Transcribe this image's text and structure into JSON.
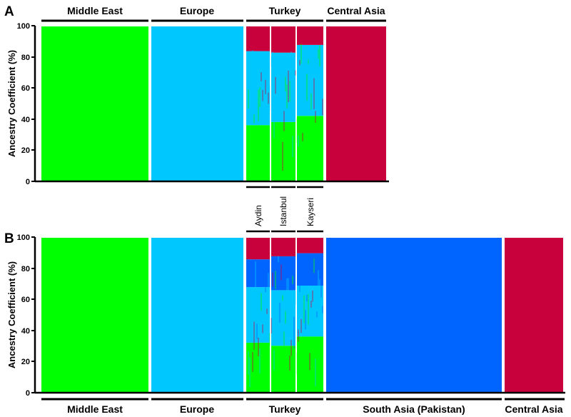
{
  "colors": {
    "middle_east": "#00ff00",
    "europe": "#00c8ff",
    "central_asia": "#c8003c",
    "south_asia": "#0064ff",
    "divider": "#ffffff",
    "axis": "#000000"
  },
  "chart_data": [
    {
      "panel": "A",
      "type": "bar",
      "stacked": true,
      "ylabel": "Ancestry Coefficient (%)",
      "ylim": [
        0,
        100
      ],
      "yticks": [
        "0",
        "20",
        "40",
        "60",
        "80",
        "100"
      ],
      "groups": [
        {
          "name": "Middle East",
          "composition": {
            "middle_east": 100,
            "europe": 0,
            "central_asia": 0
          }
        },
        {
          "name": "Europe",
          "composition": {
            "middle_east": 0,
            "europe": 100,
            "central_asia": 0
          }
        },
        {
          "name": "Turkey",
          "composition": {
            "middle_east": 38,
            "europe": 47,
            "central_asia": 15
          },
          "subgroups": [
            {
              "name": "Aydin",
              "middle_east": 36,
              "europe": 48,
              "central_asia": 16
            },
            {
              "name": "Istanbul",
              "middle_east": 38,
              "europe": 45,
              "central_asia": 17
            },
            {
              "name": "Kayseri",
              "middle_east": 42,
              "europe": 46,
              "central_asia": 12
            }
          ]
        },
        {
          "name": "Central Asia",
          "composition": {
            "middle_east": 0,
            "europe": 0,
            "central_asia": 100
          }
        }
      ]
    },
    {
      "panel": "B",
      "type": "bar",
      "stacked": true,
      "ylabel": "Ancestry Coefficient (%)",
      "ylim": [
        0,
        100
      ],
      "yticks": [
        "0",
        "20",
        "40",
        "60",
        "80",
        "100"
      ],
      "groups": [
        {
          "name": "Middle East",
          "composition": {
            "middle_east": 100,
            "europe": 0,
            "south_asia": 0,
            "central_asia": 0
          }
        },
        {
          "name": "Europe",
          "composition": {
            "middle_east": 0,
            "europe": 100,
            "south_asia": 0,
            "central_asia": 0
          }
        },
        {
          "name": "Turkey",
          "composition": {
            "middle_east": 33,
            "europe": 35,
            "south_asia": 20,
            "central_asia": 12
          },
          "subgroups": [
            {
              "name": "Aydin",
              "middle_east": 32,
              "europe": 36,
              "south_asia": 18,
              "central_asia": 14
            },
            {
              "name": "Istanbul",
              "middle_east": 30,
              "europe": 36,
              "south_asia": 22,
              "central_asia": 12
            },
            {
              "name": "Kayseri",
              "middle_east": 36,
              "europe": 33,
              "south_asia": 21,
              "central_asia": 10
            }
          ]
        },
        {
          "name": "South Asia (Pakistan)",
          "composition": {
            "middle_east": 0,
            "europe": 0,
            "south_asia": 100,
            "central_asia": 0
          }
        },
        {
          "name": "Central Asia",
          "composition": {
            "middle_east": 0,
            "europe": 0,
            "south_asia": 0,
            "central_asia": 100
          }
        }
      ]
    }
  ]
}
